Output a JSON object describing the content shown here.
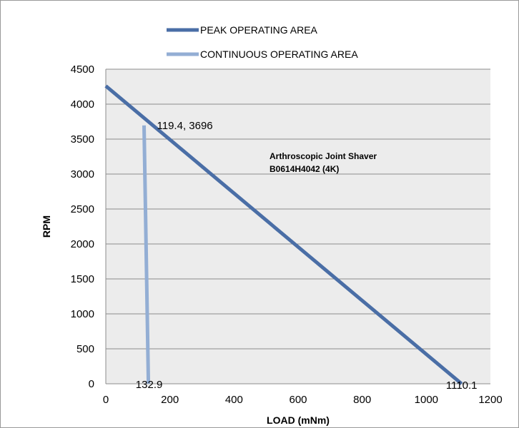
{
  "chart_data": {
    "type": "line",
    "title": "",
    "xlabel": "LOAD (mNm)",
    "ylabel": "RPM",
    "xlim": [
      0,
      1200
    ],
    "ylim": [
      0,
      4500
    ],
    "x_ticks": [
      0,
      200,
      400,
      600,
      800,
      1000,
      1200
    ],
    "y_ticks": [
      0,
      500,
      1000,
      1500,
      2000,
      2500,
      3000,
      3500,
      4000,
      4500
    ],
    "grid": "horizontal",
    "legend_position": "top",
    "plot_background": "#ececec",
    "series": [
      {
        "name": "PEAK OPERATING AREA",
        "color": "#4a6ea6",
        "points": [
          [
            0,
            4260
          ],
          [
            1110.1,
            0
          ]
        ]
      },
      {
        "name": "CONTINUOUS OPERATING AREA",
        "color": "#93aed4",
        "points": [
          [
            119.4,
            3696
          ],
          [
            132.9,
            0
          ]
        ]
      }
    ],
    "annotations": [
      {
        "text": "119.4, 3696",
        "x": 119.4,
        "y": 3696
      },
      {
        "text": "132.9",
        "x": 132.9,
        "y": 0
      },
      {
        "text": "1110.1",
        "x": 1110.1,
        "y": 0
      }
    ],
    "note_lines": [
      "Arthroscopic Joint Shaver",
      "B0614H4042 (4K)"
    ]
  }
}
